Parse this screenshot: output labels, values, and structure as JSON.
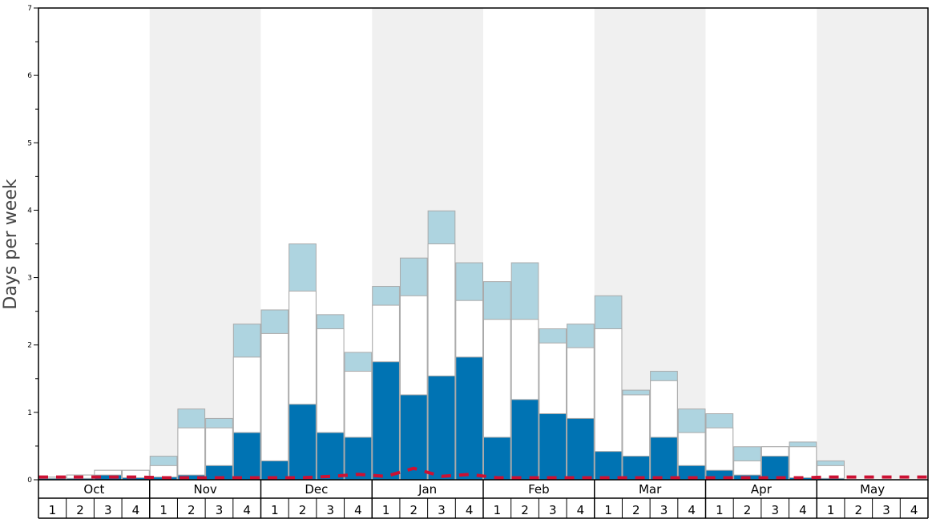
{
  "chart_data": {
    "type": "bar",
    "ylabel": "Days per week",
    "ylim": [
      0,
      7
    ],
    "yticks": [
      "0",
      "1",
      "2",
      "3",
      "4",
      "5",
      "6",
      "7"
    ],
    "months": [
      "Oct",
      "Nov",
      "Dec",
      "Jan",
      "Feb",
      "Mar",
      "Apr",
      "May"
    ],
    "weeks": [
      "1",
      "2",
      "3",
      "4"
    ],
    "categories": [
      "Oct 1",
      "Oct 2",
      "Oct 3",
      "Oct 4",
      "Nov 1",
      "Nov 2",
      "Nov 3",
      "Nov 4",
      "Dec 1",
      "Dec 2",
      "Dec 3",
      "Dec 4",
      "Jan 1",
      "Jan 2",
      "Jan 3",
      "Jan 4",
      "Feb 1",
      "Feb 2",
      "Feb 3",
      "Feb 4",
      "Mar 1",
      "Mar 2",
      "Mar 3",
      "Mar 4",
      "Apr 1",
      "Apr 2",
      "Apr 3",
      "Apr 4",
      "May 1",
      "May 2",
      "May 3",
      "May 4"
    ],
    "series": [
      {
        "values": [
          0.02,
          0.02,
          0.07,
          0.03,
          0.04,
          0.07,
          0.21,
          0.7,
          0.28,
          1.12,
          0.7,
          0.63,
          1.75,
          1.26,
          1.54,
          1.82,
          0.63,
          1.19,
          0.98,
          0.91,
          0.42,
          0.35,
          0.63,
          0.21,
          0.14,
          0.07,
          0.35,
          0.03,
          0.02,
          0.0,
          0.0,
          0.0
        ],
        "color": "#0073b3"
      },
      {
        "values": [
          0.04,
          0.07,
          0.14,
          0.14,
          0.21,
          0.77,
          0.77,
          1.82,
          2.17,
          2.8,
          2.24,
          1.61,
          2.59,
          2.73,
          3.5,
          2.66,
          2.38,
          2.38,
          2.03,
          1.96,
          2.24,
          1.26,
          1.47,
          0.7,
          0.77,
          0.28,
          0.49,
          0.49,
          0.21,
          0.0,
          0.0,
          0.0
        ],
        "color": "#ffffff"
      },
      {
        "values": [
          0.04,
          0.07,
          0.14,
          0.14,
          0.35,
          1.05,
          0.91,
          2.31,
          2.52,
          3.5,
          2.45,
          1.89,
          2.87,
          3.29,
          3.99,
          3.22,
          2.94,
          3.22,
          2.24,
          2.31,
          2.73,
          1.33,
          1.61,
          1.05,
          0.98,
          0.49,
          0.49,
          0.56,
          0.28,
          0.0,
          0.0,
          0.0
        ],
        "color": "#aed4e0"
      },
      {
        "values": [
          0.04,
          0.04,
          0.04,
          0.04,
          0.03,
          0.03,
          0.03,
          0.03,
          0.03,
          0.03,
          0.05,
          0.08,
          0.05,
          0.17,
          0.05,
          0.08,
          0.03,
          0.03,
          0.03,
          0.03,
          0.03,
          0.03,
          0.03,
          0.03,
          0.03,
          0.03,
          0.03,
          0.03,
          0.04,
          0.04,
          0.04,
          0.04
        ],
        "color": "#cc1133"
      }
    ]
  }
}
